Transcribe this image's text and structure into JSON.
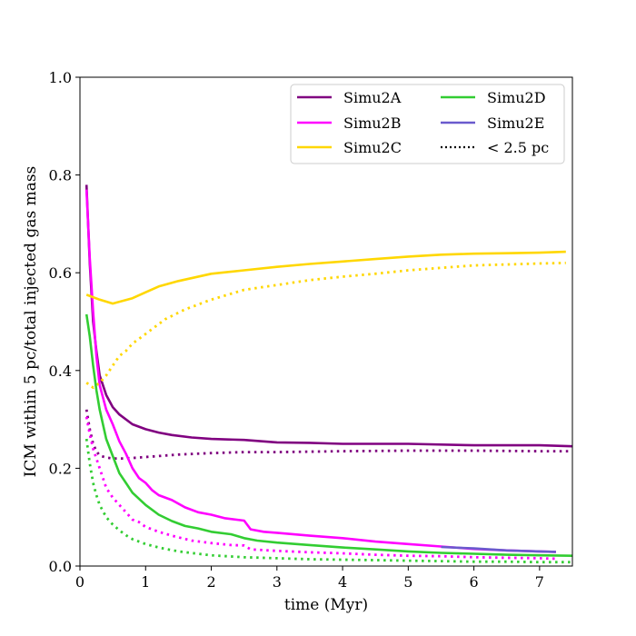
{
  "chart_data": {
    "type": "line",
    "title": "",
    "xlabel": "time (Myr)",
    "ylabel": "ICM within 5 pc/total injected gas mass",
    "xlim": [
      0,
      7.5
    ],
    "ylim": [
      0.0,
      1.0
    ],
    "xticks": [
      0,
      1,
      2,
      3,
      4,
      5,
      6,
      7
    ],
    "xtick_labels": [
      "0",
      "1",
      "2",
      "3",
      "4",
      "5",
      "6",
      "7"
    ],
    "yticks": [
      0.0,
      0.2,
      0.4,
      0.6,
      0.8,
      1.0
    ],
    "ytick_labels": [
      "0.0",
      "0.2",
      "0.4",
      "0.6",
      "0.8",
      "1.0"
    ],
    "grid": false,
    "legend_position": "top-right",
    "legend": [
      {
        "label": "Simu2A",
        "color": "#800080",
        "style": "solid"
      },
      {
        "label": "Simu2D",
        "color": "#32CD32",
        "style": "solid"
      },
      {
        "label": "Simu2B",
        "color": "#FF00FF",
        "style": "solid"
      },
      {
        "label": "Simu2E",
        "color": "#6A5ACD",
        "style": "solid"
      },
      {
        "label": "Simu2C",
        "color": "#FFD700",
        "style": "solid"
      },
      {
        "label": "< 2.5 pc",
        "color": "#000000",
        "style": "dotted"
      }
    ],
    "series": [
      {
        "name": "Simu2A",
        "color": "#800080",
        "style": "solid",
        "x": [
          0.1,
          0.15,
          0.2,
          0.25,
          0.3,
          0.4,
          0.5,
          0.6,
          0.8,
          1.0,
          1.2,
          1.4,
          1.7,
          2.0,
          2.5,
          3.0,
          3.5,
          4.0,
          5.0,
          6.0,
          7.0,
          7.5
        ],
        "y": [
          0.78,
          0.62,
          0.5,
          0.44,
          0.39,
          0.35,
          0.325,
          0.31,
          0.29,
          0.28,
          0.273,
          0.268,
          0.263,
          0.26,
          0.258,
          0.253,
          0.252,
          0.25,
          0.25,
          0.247,
          0.247,
          0.245
        ]
      },
      {
        "name": "Simu2A < 2.5 pc",
        "color": "#800080",
        "style": "dotted",
        "x": [
          0.1,
          0.15,
          0.2,
          0.25,
          0.3,
          0.4,
          0.5,
          0.7,
          1.0,
          1.5,
          2.0,
          2.5,
          3.0,
          4.0,
          5.0,
          6.0,
          7.0,
          7.5
        ],
        "y": [
          0.32,
          0.28,
          0.25,
          0.235,
          0.226,
          0.222,
          0.22,
          0.22,
          0.223,
          0.228,
          0.231,
          0.233,
          0.233,
          0.235,
          0.236,
          0.236,
          0.235,
          0.235
        ]
      },
      {
        "name": "Simu2B",
        "color": "#FF00FF",
        "style": "solid",
        "x": [
          0.1,
          0.15,
          0.2,
          0.25,
          0.3,
          0.4,
          0.5,
          0.6,
          0.7,
          0.8,
          0.9,
          1.0,
          1.1,
          1.2,
          1.4,
          1.6,
          1.8,
          2.0,
          2.2,
          2.5,
          2.6,
          2.8,
          3.0,
          3.5,
          4.0,
          4.5,
          5.0,
          5.5,
          6.0,
          6.5,
          7.0,
          7.25
        ],
        "y": [
          0.77,
          0.63,
          0.52,
          0.43,
          0.37,
          0.32,
          0.29,
          0.255,
          0.23,
          0.2,
          0.18,
          0.17,
          0.155,
          0.145,
          0.135,
          0.12,
          0.11,
          0.105,
          0.098,
          0.093,
          0.075,
          0.07,
          0.068,
          0.062,
          0.057,
          0.05,
          0.045,
          0.04,
          0.035,
          0.032,
          0.03,
          0.029
        ]
      },
      {
        "name": "Simu2B < 2.5 pc",
        "color": "#FF00FF",
        "style": "dotted",
        "x": [
          0.1,
          0.15,
          0.2,
          0.3,
          0.4,
          0.5,
          0.6,
          0.7,
          0.8,
          0.9,
          1.0,
          1.2,
          1.4,
          1.7,
          2.0,
          2.3,
          2.5,
          2.6,
          3.0,
          3.5,
          4.0,
          4.5,
          5.0,
          5.5,
          6.0,
          6.5,
          7.0,
          7.25
        ],
        "y": [
          0.305,
          0.27,
          0.24,
          0.2,
          0.16,
          0.14,
          0.125,
          0.11,
          0.095,
          0.09,
          0.08,
          0.07,
          0.062,
          0.052,
          0.047,
          0.043,
          0.042,
          0.034,
          0.031,
          0.028,
          0.026,
          0.023,
          0.021,
          0.02,
          0.018,
          0.017,
          0.016,
          0.015
        ]
      },
      {
        "name": "Simu2C",
        "color": "#FFD700",
        "style": "solid",
        "x": [
          0.1,
          0.3,
          0.5,
          0.8,
          1.0,
          1.2,
          1.5,
          2.0,
          2.5,
          3.0,
          3.5,
          4.0,
          4.5,
          5.0,
          5.5,
          6.0,
          6.5,
          7.0,
          7.4
        ],
        "y": [
          0.555,
          0.545,
          0.537,
          0.548,
          0.56,
          0.572,
          0.583,
          0.598,
          0.605,
          0.612,
          0.618,
          0.623,
          0.628,
          0.633,
          0.637,
          0.639,
          0.64,
          0.641,
          0.643
        ]
      },
      {
        "name": "Simu2C < 2.5 pc",
        "color": "#FFD700",
        "style": "dotted",
        "x": [
          0.1,
          0.2,
          0.3,
          0.4,
          0.5,
          0.6,
          0.7,
          0.8,
          1.0,
          1.3,
          1.6,
          2.0,
          2.5,
          3.0,
          3.5,
          4.0,
          4.5,
          5.0,
          5.5,
          6.0,
          6.5,
          7.0,
          7.4
        ],
        "y": [
          0.375,
          0.365,
          0.375,
          0.39,
          0.41,
          0.43,
          0.44,
          0.455,
          0.475,
          0.505,
          0.525,
          0.545,
          0.565,
          0.575,
          0.585,
          0.592,
          0.598,
          0.605,
          0.61,
          0.615,
          0.617,
          0.619,
          0.62
        ]
      },
      {
        "name": "Simu2D",
        "color": "#32CD32",
        "style": "solid",
        "x": [
          0.1,
          0.15,
          0.2,
          0.25,
          0.3,
          0.4,
          0.5,
          0.6,
          0.7,
          0.8,
          1.0,
          1.2,
          1.4,
          1.6,
          1.8,
          2.0,
          2.3,
          2.5,
          2.7,
          3.0,
          3.5,
          4.0,
          4.5,
          5.0,
          5.5,
          6.0,
          6.5,
          7.0,
          7.5
        ],
        "y": [
          0.515,
          0.47,
          0.41,
          0.36,
          0.32,
          0.26,
          0.225,
          0.19,
          0.17,
          0.15,
          0.125,
          0.105,
          0.092,
          0.082,
          0.077,
          0.07,
          0.065,
          0.057,
          0.052,
          0.048,
          0.043,
          0.038,
          0.034,
          0.03,
          0.027,
          0.025,
          0.023,
          0.022,
          0.021
        ]
      },
      {
        "name": "Simu2D < 2.5 pc",
        "color": "#32CD32",
        "style": "dotted",
        "x": [
          0.1,
          0.15,
          0.2,
          0.25,
          0.3,
          0.4,
          0.5,
          0.6,
          0.7,
          0.8,
          1.0,
          1.2,
          1.5,
          2.0,
          2.5,
          3.0,
          3.5,
          4.0,
          4.5,
          5.0,
          5.5,
          6.0,
          6.5,
          7.0,
          7.5
        ],
        "y": [
          0.26,
          0.21,
          0.17,
          0.145,
          0.125,
          0.1,
          0.085,
          0.073,
          0.063,
          0.055,
          0.045,
          0.038,
          0.03,
          0.022,
          0.018,
          0.016,
          0.014,
          0.013,
          0.012,
          0.011,
          0.01,
          0.009,
          0.009,
          0.008,
          0.008
        ]
      },
      {
        "name": "Simu2E",
        "color": "#6A5ACD",
        "style": "solid",
        "x": [
          5.5,
          6.0,
          6.5,
          7.0,
          7.25
        ],
        "y": [
          0.039,
          0.036,
          0.032,
          0.03,
          0.029
        ]
      }
    ]
  }
}
